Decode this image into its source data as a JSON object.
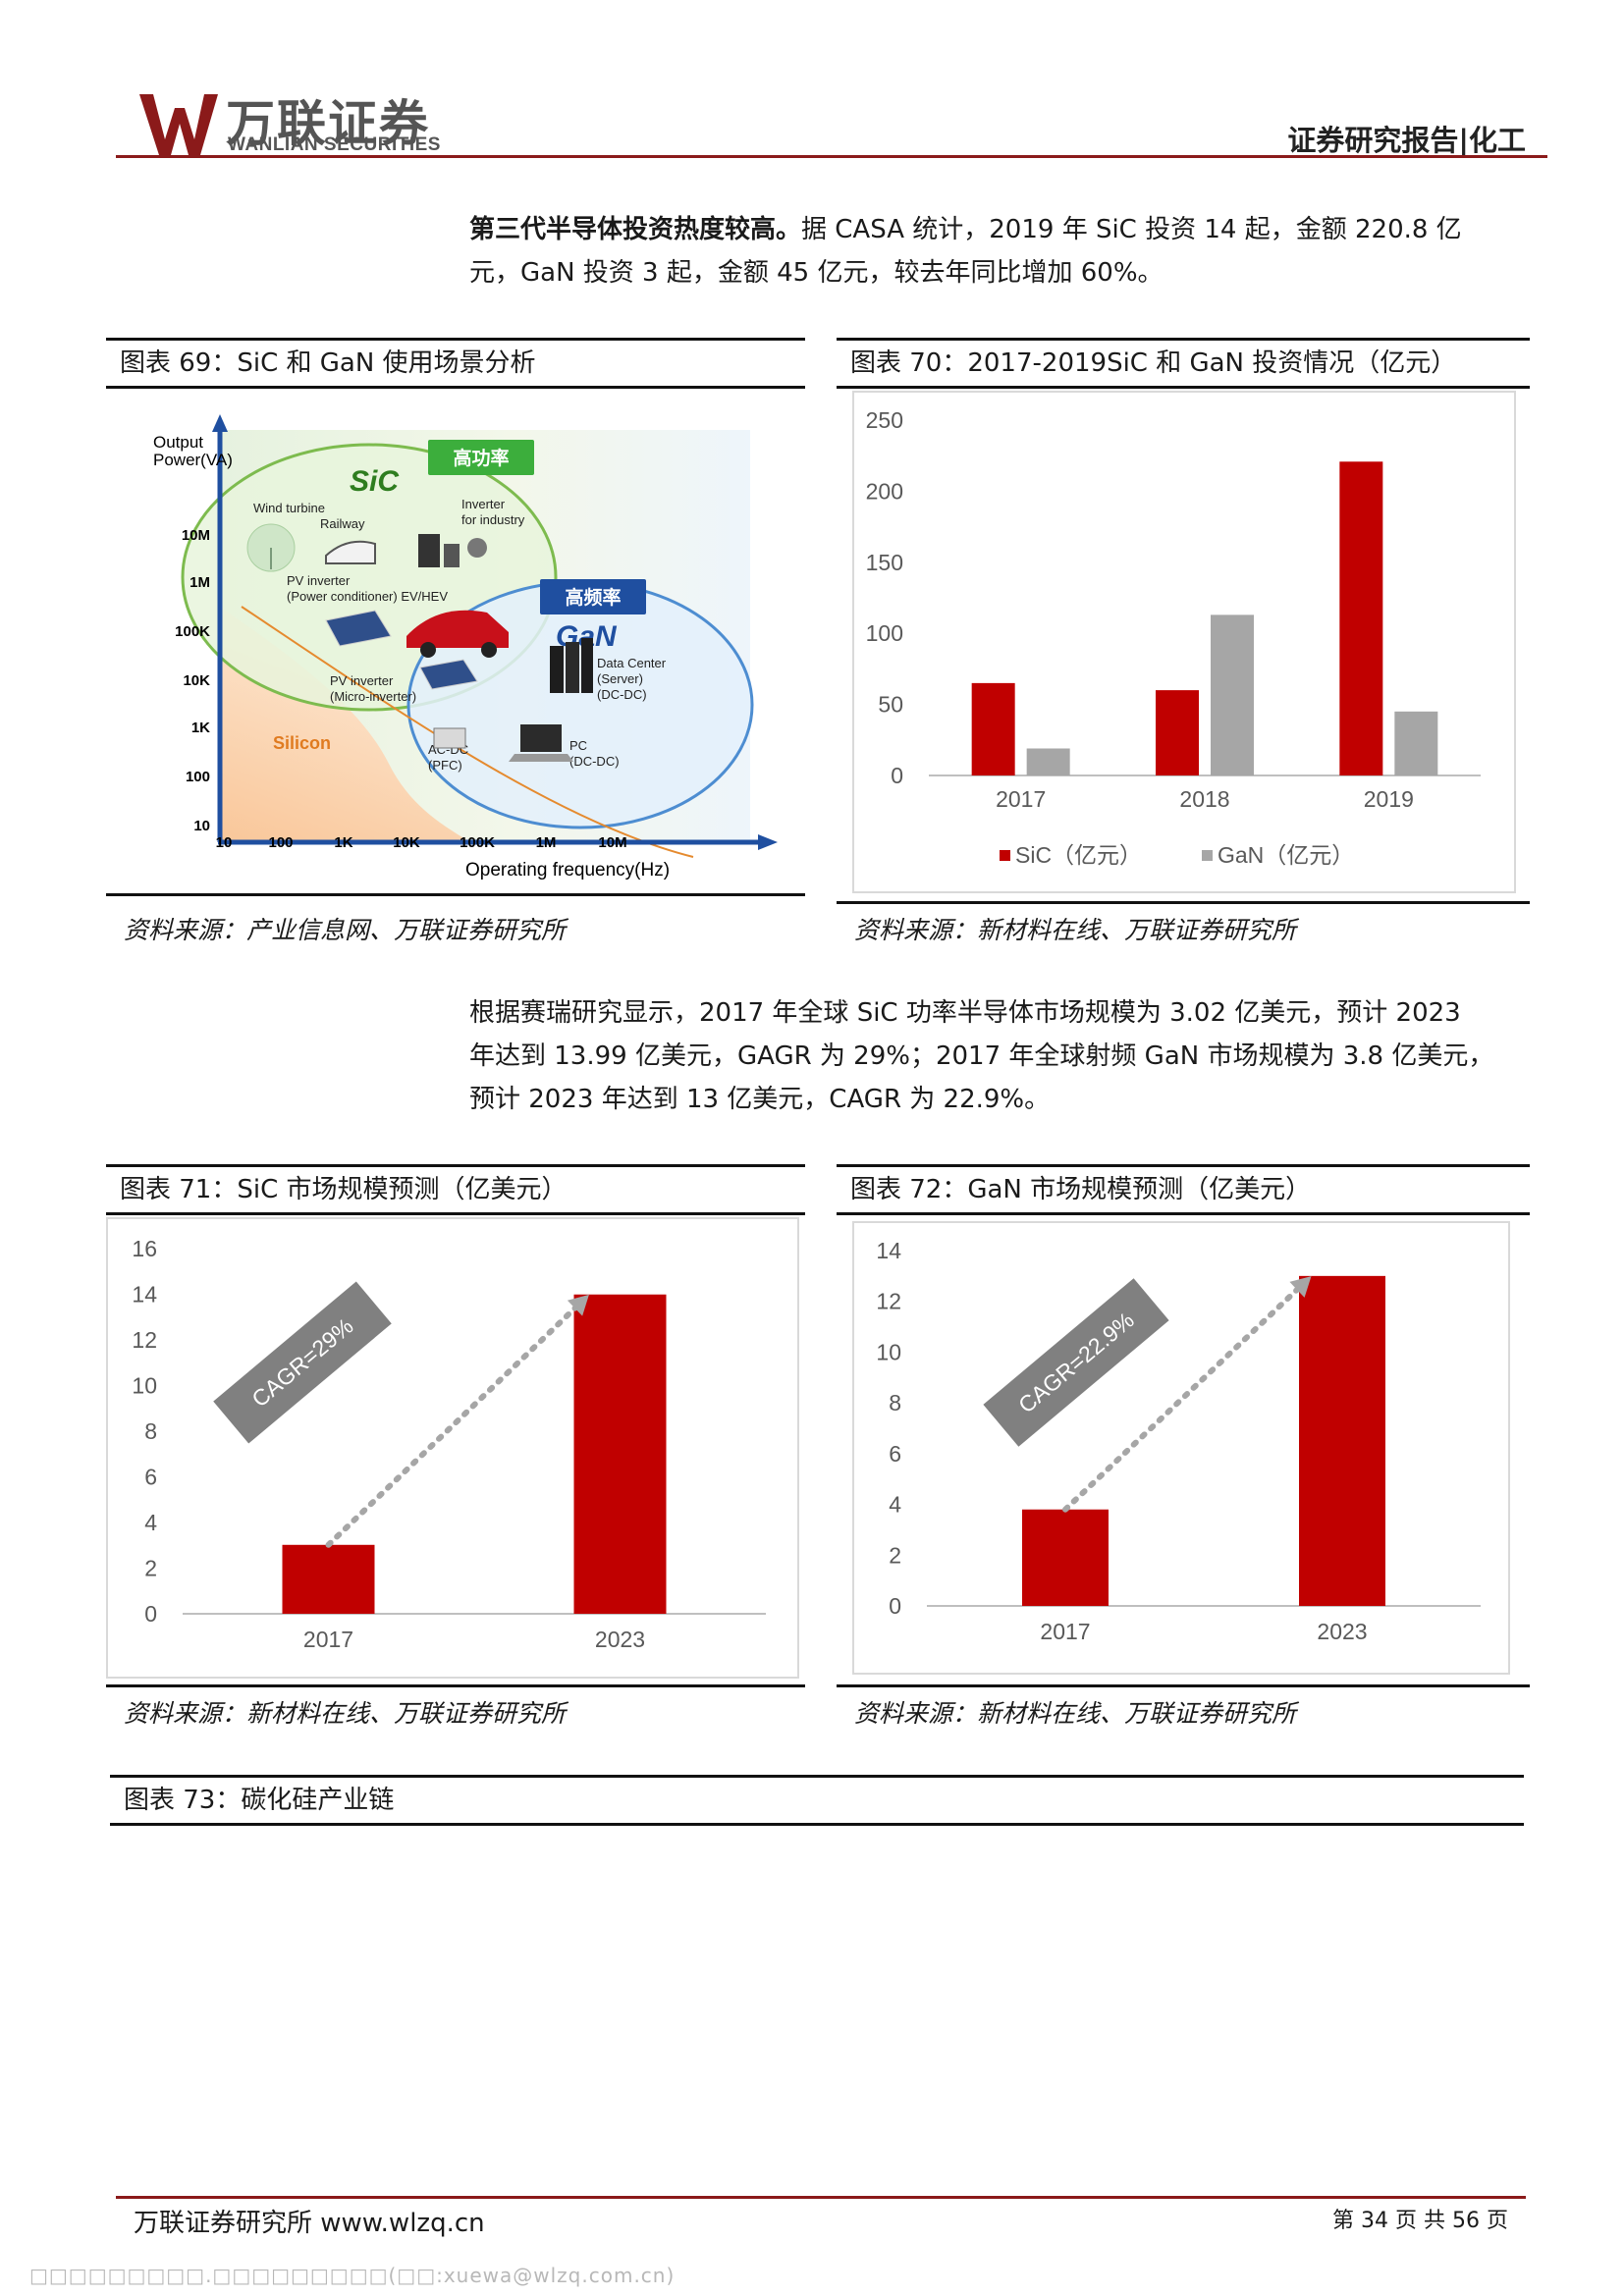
{
  "header": {
    "logo_cn": "万联证券",
    "logo_en": "WANLIAN SECURITIES",
    "report_type": "证券研究报告|化工",
    "brand_color": "#8b1a1a"
  },
  "para1": {
    "bold": "第三代半导体投资热度较高。",
    "line1": "据 CASA 统计，2019 年 SiC 投资 14 起，金额 220.8 亿",
    "line2": "元，GaN 投资 3 起，金额 45 亿元，较去年同比增加 60%。"
  },
  "fig69": {
    "caption": "图表 69：SiC 和 GaN 使用场景分析",
    "source": "资料来源：产业信息网、万联证券研究所",
    "diagram": {
      "y_title_1": "Output",
      "y_title_2": "Power(VA)",
      "x_title": "Operating frequency(Hz)",
      "y_ticks": [
        "10M",
        "1M",
        "100K",
        "10K",
        "1K",
        "100",
        "10"
      ],
      "x_ticks": [
        "10",
        "100",
        "1K",
        "10K",
        "100K",
        "1M",
        "10M"
      ],
      "sic_label": "SiC",
      "gan_label": "GaN",
      "silicon_label": "Silicon",
      "tag_high_power": "高功率",
      "tag_high_freq": "高频率",
      "apps": {
        "wind": "Wind turbine",
        "railway": "Railway",
        "inverter1": "Inverter",
        "inverter2": "for industry",
        "pv1": "PV inverter",
        "pv2": "(Power conditioner) EV/HEV",
        "dc1": "Data Center",
        "dc2": "(Server)",
        "dc3": "(DC-DC)",
        "pvm1": "PV inverter",
        "pvm2": "(Micro-inverter)",
        "acdc1": "AC-DC",
        "acdc2": "(PFC)",
        "pc1": "PC",
        "pc2": "(DC-DC)"
      }
    }
  },
  "fig70": {
    "caption": "图表 70：2017-2019SiC 和 GaN 投资情况（亿元）",
    "source": "资料来源：新材料在线、万联证券研究所"
  },
  "para2": {
    "line1": "根据赛瑞研究显示，2017 年全球 SiC 功率半导体市场规模为 3.02 亿美元，预计 2023",
    "line2": "年达到 13.99 亿美元，GAGR 为 29%；2017 年全球射频 GaN 市场规模为 3.8 亿美元，",
    "line3": "预计 2023 年达到 13 亿美元，CAGR 为 22.9%。"
  },
  "fig71": {
    "caption": "图表 71：SiC 市场规模预测（亿美元）",
    "source": "资料来源：新材料在线、万联证券研究所"
  },
  "fig72": {
    "caption": "图表 72：GaN 市场规模预测（亿美元）",
    "source": "资料来源：新材料在线、万联证券研究所"
  },
  "fig73": {
    "caption": "图表 73：碳化硅产业链"
  },
  "footer": {
    "left": "万联证券研究所 www.wlzq.cn",
    "right": "第 34 页 共 56 页",
    "watermark": "□□□□□□□□□.□□□□□□□□□(□□:xuewa@wlzq.com.cn)"
  },
  "chart_data": [
    {
      "type": "bar",
      "categories": [
        "2017",
        "2018",
        "2019"
      ],
      "series": [
        {
          "name": "SiC（亿元）",
          "values": [
            65,
            60,
            220.8
          ],
          "color": "#c00000"
        },
        {
          "name": "GaN（亿元）",
          "values": [
            19,
            113,
            45
          ],
          "color": "#a6a6a6"
        }
      ],
      "ylim": [
        0,
        250
      ],
      "yticks": [
        "0",
        "50",
        "100",
        "150",
        "200",
        "250"
      ],
      "legend": "bottom",
      "grid": false
    },
    {
      "type": "bar",
      "categories": [
        "2017",
        "2023"
      ],
      "values": [
        3.02,
        13.99
      ],
      "color": "#c00000",
      "ylim": [
        0,
        16
      ],
      "yticks": [
        "0",
        "2",
        "4",
        "6",
        "8",
        "10",
        "12",
        "14",
        "16"
      ],
      "annotation": "CAGR=29%",
      "grid": false
    },
    {
      "type": "bar",
      "categories": [
        "2017",
        "2023"
      ],
      "values": [
        3.8,
        13
      ],
      "color": "#c00000",
      "ylim": [
        0,
        14
      ],
      "yticks": [
        "0",
        "2",
        "4",
        "6",
        "8",
        "10",
        "12",
        "14"
      ],
      "annotation": "CAGR=22.9%",
      "grid": false
    }
  ]
}
